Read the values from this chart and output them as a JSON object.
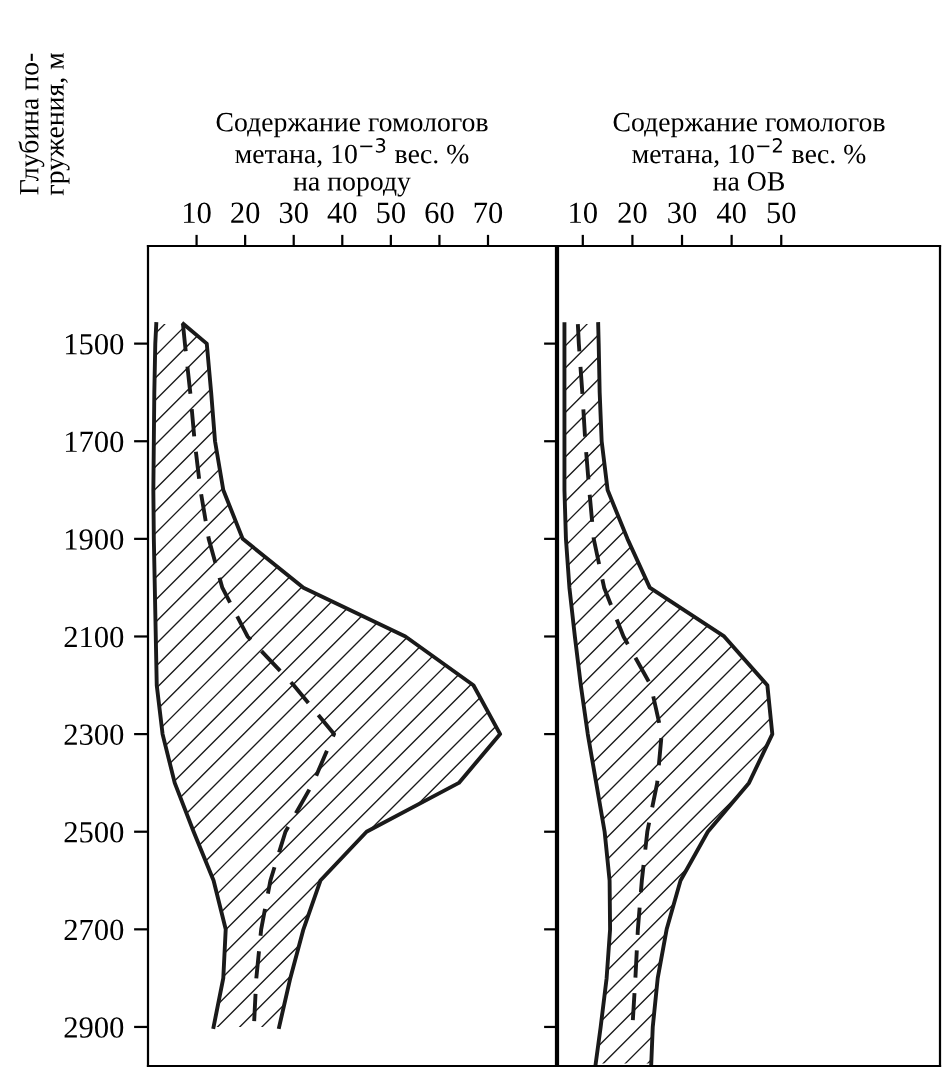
{
  "chart_data": [
    {
      "type": "line",
      "orientation": "horizontal",
      "title": "Содержание гомологов\nметана, 10$^{−3}$ вес. %\nна породу",
      "ylabel": "Глубина по-\nгружения, м",
      "x": [
        1460,
        1500,
        1600,
        1700,
        1800,
        1900,
        2000,
        2100,
        2200,
        2300,
        2400,
        2500,
        2600,
        2700,
        2800,
        2900
      ],
      "series": [
        {
          "color": "#1a1a1a",
          "line_style": "solid",
          "values": [
            1.7,
            1.5,
            1.3,
            1.2,
            1.1,
            1.2,
            1.4,
            1.6,
            1.8,
            3,
            5.5,
            9.4,
            13.5,
            16,
            15.5,
            13.5
          ]
        },
        {
          "color": "#1a1a1a",
          "line_style": "solid",
          "values": [
            7.3,
            12.1,
            13,
            13.8,
            15.5,
            19.5,
            32,
            53,
            67,
            72.5,
            64,
            45,
            35.5,
            32,
            29.3,
            27
          ]
        },
        {
          "color": "#1a1a1a",
          "line_style": "dashed",
          "values": [
            7.2,
            7.6,
            8.7,
            9.6,
            10.8,
            12.5,
            15.3,
            20.5,
            30,
            38.3,
            34,
            28.3,
            25.2,
            23.3,
            22.3,
            21.8
          ],
          "lower": [
            1.7,
            1.5,
            1.3,
            1.2,
            1.1,
            1.2,
            1.4,
            1.6,
            1.8,
            3,
            5.5,
            9.4,
            13.5,
            16,
            15.5,
            13.5
          ],
          "upper": [
            7.3,
            12.1,
            13,
            13.8,
            15.5,
            19.5,
            32,
            53,
            67,
            72.5,
            64,
            45,
            35.5,
            32,
            29.3,
            27
          ]
        }
      ],
      "xlim": [
        0,
        84
      ],
      "xticks": [
        10,
        20,
        30,
        40,
        50,
        60,
        70
      ],
      "ylim": [
        2980,
        1300
      ],
      "yticks": [
        1500,
        1700,
        1900,
        2100,
        2300,
        2500,
        2700,
        2900
      ]
    },
    {
      "type": "line",
      "orientation": "horizontal",
      "title": "Содержание гомологов\nметана, 10$^{−2}$ вес. %\nна ОВ",
      "x": [
        1460,
        1500,
        1600,
        1700,
        1800,
        1900,
        2000,
        2100,
        2200,
        2300,
        2400,
        2500,
        2600,
        2700,
        2800,
        2900,
        2975
      ],
      "series": [
        {
          "color": "#1a1a1a",
          "line_style": "solid",
          "values": [
            6.3,
            6.3,
            6.3,
            6.3,
            6.3,
            6.6,
            7.3,
            8.4,
            9.6,
            11.0,
            12.7,
            14.4,
            15.4,
            15.5,
            14.8,
            13.6,
            12.6
          ]
        },
        {
          "color": "#1a1a1a",
          "line_style": "solid",
          "values": [
            13.1,
            13.2,
            13.4,
            13.8,
            15.0,
            19,
            23.5,
            38.5,
            47.2,
            48.2,
            43.5,
            35.2,
            29.7,
            26.9,
            25.1,
            24.1,
            23.8
          ]
        },
        {
          "color": "#1a1a1a",
          "line_style": "dashed",
          "values": [
            9.0,
            9.2,
            9.9,
            10.5,
            11.3,
            12.2,
            14.3,
            18.2,
            23.7,
            25.9,
            25.0,
            23.0,
            21.9,
            21.1,
            20.6,
            20.0,
            null
          ],
          "lower": [
            6.3,
            6.3,
            6.3,
            6.3,
            6.3,
            6.6,
            7.3,
            8.4,
            9.6,
            11.0,
            12.7,
            14.4,
            15.4,
            15.5,
            14.8,
            13.6,
            12.6
          ],
          "upper": [
            13.1,
            13.2,
            13.4,
            13.8,
            15.0,
            19,
            23.5,
            38.5,
            47.2,
            48.2,
            43.5,
            35.2,
            29.7,
            26.9,
            25.1,
            24.1,
            23.8
          ]
        }
      ],
      "xlim": [
        5,
        82
      ],
      "xticks": [
        10,
        20,
        30,
        40,
        50
      ],
      "ylim": [
        2980,
        1300
      ],
      "yticks": [
        1500,
        1700,
        1900,
        2100,
        2300,
        2500,
        2700,
        2900
      ],
      "tick_labels": "x"
    }
  ]
}
